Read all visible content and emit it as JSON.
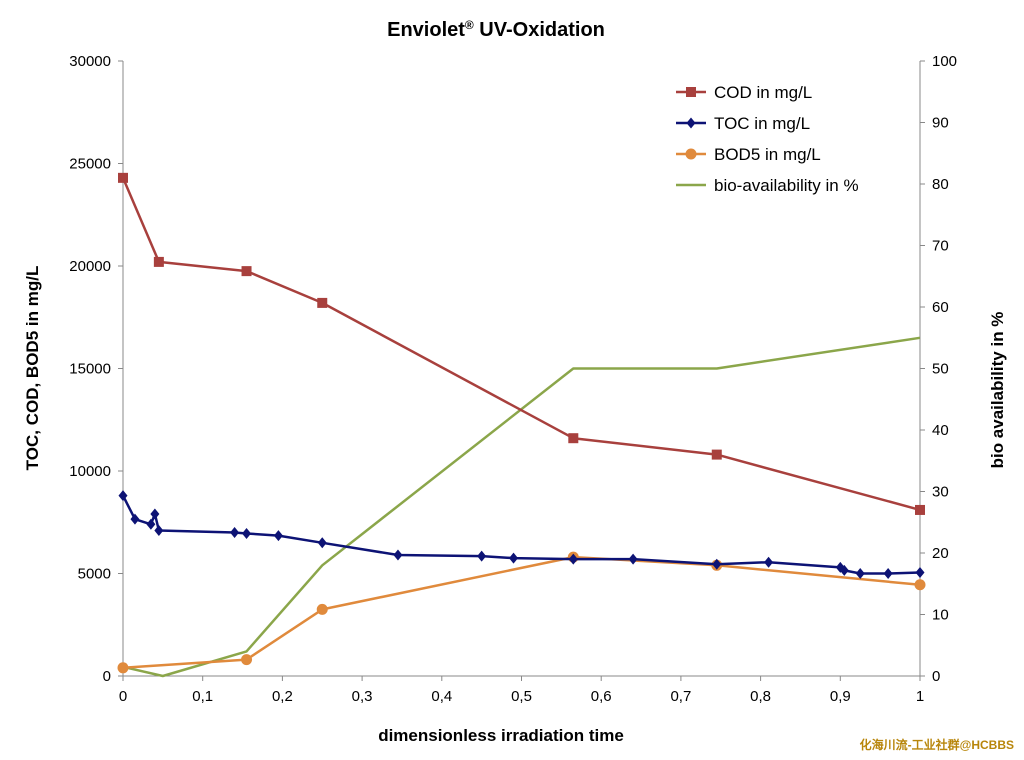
{
  "chart_data": {
    "type": "line",
    "title": "Enviolet",
    "title_sup": "®",
    "title_rest": " UV-Oxidation",
    "xlabel": "dimensionless  irradiation time",
    "ylabel": "TOC, COD, BOD5  in mg/L",
    "y2label": "bio availability in %",
    "xlim": [
      0,
      1
    ],
    "ylim": [
      0,
      30000
    ],
    "y2lim": [
      0,
      100
    ],
    "x_ticks": [
      "0",
      "0,1",
      "0,2",
      "0,3",
      "0,4",
      "0,5",
      "0,6",
      "0,7",
      "0,8",
      "0,9",
      "1"
    ],
    "y_ticks": [
      "0",
      "5000",
      "10000",
      "15000",
      "20000",
      "25000",
      "30000"
    ],
    "y2_ticks": [
      "0",
      "10",
      "20",
      "30",
      "40",
      "50",
      "60",
      "70",
      "80",
      "90",
      "100"
    ],
    "grid": false,
    "legend_position": "top-right",
    "series": [
      {
        "name": "COD in mg/L",
        "axis": "left",
        "color": "#a8403d",
        "marker": "square",
        "x": [
          0,
          0.045,
          0.155,
          0.25,
          0.565,
          0.745,
          1.0
        ],
        "y": [
          24300,
          20200,
          19750,
          18200,
          11600,
          10800,
          8100
        ]
      },
      {
        "name": "TOC in mg/L",
        "axis": "left",
        "color": "#0d1375",
        "marker": "diamond",
        "x": [
          0,
          0.015,
          0.035,
          0.04,
          0.045,
          0.14,
          0.155,
          0.195,
          0.25,
          0.345,
          0.45,
          0.49,
          0.565,
          0.64,
          0.745,
          0.81,
          0.9,
          0.905,
          0.925,
          0.96,
          1.0
        ],
        "y": [
          8800,
          7650,
          7400,
          7900,
          7100,
          7000,
          6950,
          6850,
          6500,
          5900,
          5850,
          5750,
          5700,
          5700,
          5450,
          5550,
          5300,
          5150,
          5000,
          5000,
          5050
        ]
      },
      {
        "name": "BOD5 in mg/L",
        "axis": "left",
        "color": "#e08a3c",
        "marker": "circle",
        "x": [
          0,
          0.155,
          0.25,
          0.565,
          0.745,
          1.0
        ],
        "y": [
          400,
          800,
          3250,
          5800,
          5400,
          4450
        ]
      },
      {
        "name": "bio-availability in %",
        "axis": "right",
        "color": "#8ba64a",
        "marker": "none",
        "x": [
          0,
          0.05,
          0.155,
          0.25,
          0.565,
          0.745,
          1.0
        ],
        "y": [
          1.5,
          0,
          4,
          18,
          50,
          50,
          55
        ]
      }
    ],
    "watermark": "化海川流-工业社群@HCBBS"
  }
}
